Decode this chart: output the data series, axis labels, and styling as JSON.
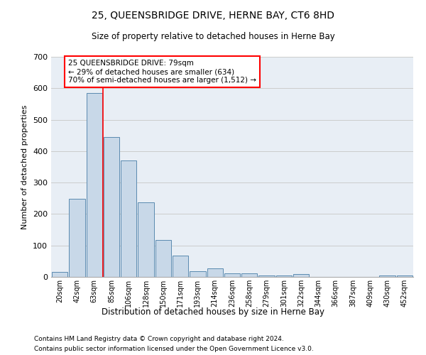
{
  "title": "25, QUEENSBRIDGE DRIVE, HERNE BAY, CT6 8HD",
  "subtitle": "Size of property relative to detached houses in Herne Bay",
  "xlabel": "Distribution of detached houses by size in Herne Bay",
  "ylabel": "Number of detached properties",
  "footnote1": "Contains HM Land Registry data © Crown copyright and database right 2024.",
  "footnote2": "Contains public sector information licensed under the Open Government Licence v3.0.",
  "bin_labels": [
    "20sqm",
    "42sqm",
    "63sqm",
    "85sqm",
    "106sqm",
    "128sqm",
    "150sqm",
    "171sqm",
    "193sqm",
    "214sqm",
    "236sqm",
    "258sqm",
    "279sqm",
    "301sqm",
    "322sqm",
    "344sqm",
    "366sqm",
    "387sqm",
    "409sqm",
    "430sqm",
    "452sqm"
  ],
  "bar_values": [
    15,
    248,
    585,
    445,
    370,
    237,
    118,
    68,
    18,
    28,
    12,
    11,
    5,
    5,
    8,
    0,
    0,
    0,
    0,
    5,
    5
  ],
  "bar_color": "#c8d8e8",
  "bar_edge_color": "#5a8ab0",
  "grid_color": "#cccccc",
  "bg_color": "#e8eef5",
  "annotation_text": "25 QUEENSBRIDGE DRIVE: 79sqm\n← 29% of detached houses are smaller (634)\n70% of semi-detached houses are larger (1,512) →",
  "ylim": [
    0,
    700
  ],
  "yticks": [
    0,
    100,
    200,
    300,
    400,
    500,
    600,
    700
  ]
}
